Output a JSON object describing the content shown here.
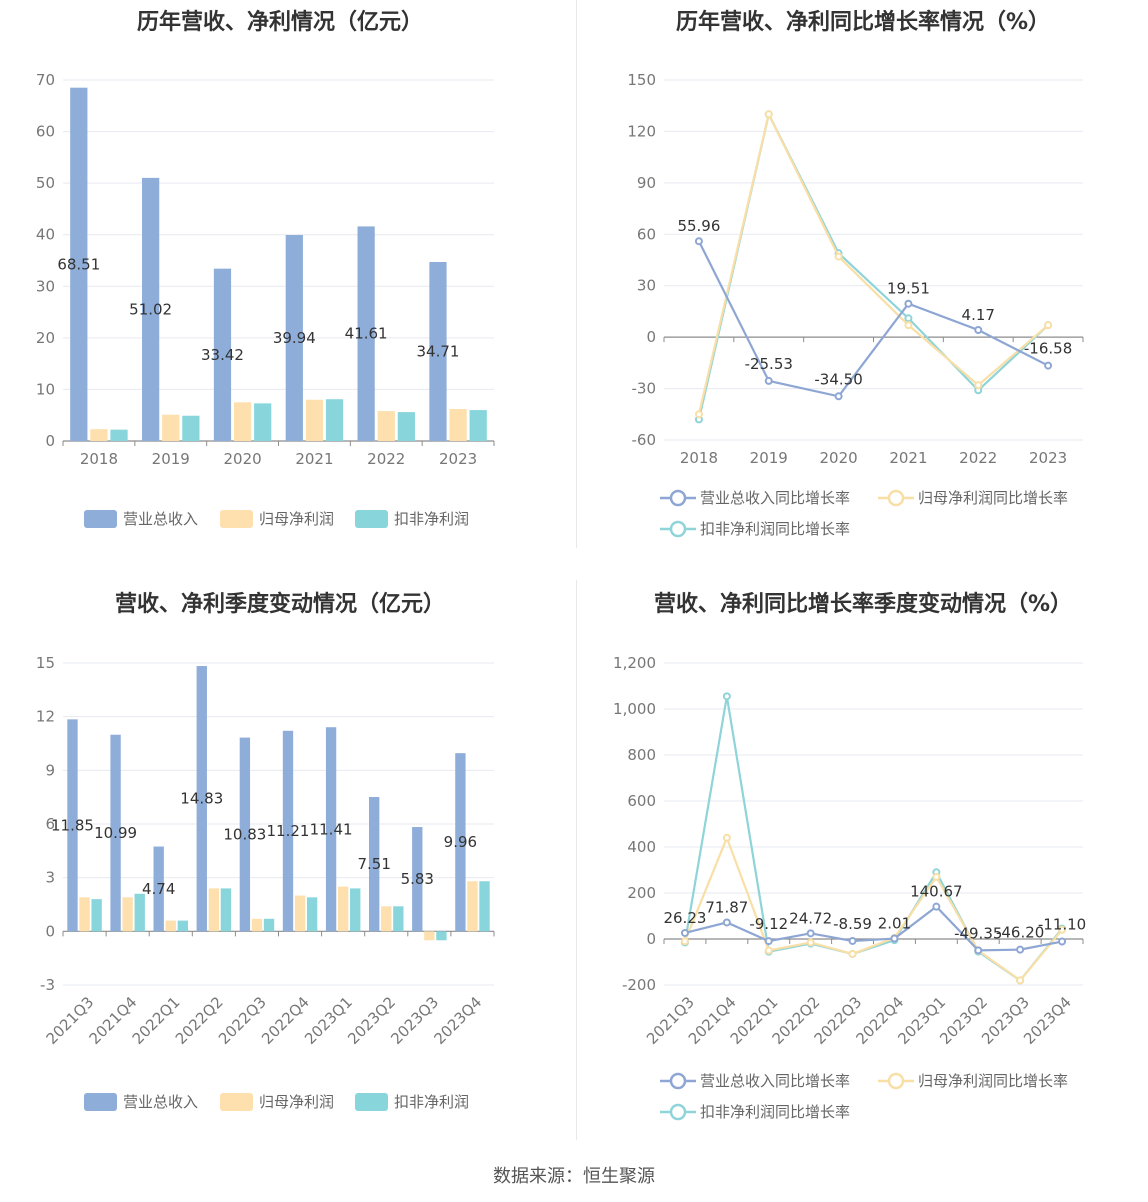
{
  "colors": {
    "revenue": "#8eadd9",
    "net_profit": "#fde0ae",
    "deducted_profit": "#88d6dc",
    "revenue_growth": "#8ea6d4",
    "net_profit_growth": "#f9dfa6",
    "deducted_growth": "#8fd4d8"
  },
  "legend_labels": {
    "revenue": "营业总收入",
    "net_profit": "归母净利润",
    "deducted_profit": "扣非净利润",
    "revenue_growth": "营业总收入同比增长率",
    "net_profit_growth": "归母净利润同比增长率",
    "deducted_growth": "扣非净利润同比增长率"
  },
  "footer": {
    "source": "数据来源：恒生聚源"
  },
  "chart_data": [
    {
      "id": "annual-amount",
      "type": "bar",
      "title": "历年营收、净利情况（亿元）",
      "categories": [
        "2018",
        "2019",
        "2020",
        "2021",
        "2022",
        "2023"
      ],
      "ylim": [
        0,
        70
      ],
      "yticks": [
        0,
        10,
        20,
        30,
        40,
        50,
        60,
        70
      ],
      "grid": true,
      "legend_position": "bottom",
      "series": [
        {
          "name": "营业总收入",
          "values": [
            68.51,
            51.02,
            33.42,
            39.94,
            41.61,
            34.71
          ],
          "labels": [
            "68.51",
            "51.02",
            "33.42",
            "39.94",
            "41.61",
            "34.71"
          ]
        },
        {
          "name": "归母净利润",
          "values": [
            2.3,
            5.1,
            7.5,
            8.0,
            5.8,
            6.2
          ]
        },
        {
          "name": "扣非净利润",
          "values": [
            2.2,
            4.9,
            7.3,
            8.1,
            5.6,
            6.0
          ]
        }
      ]
    },
    {
      "id": "annual-growth",
      "type": "line",
      "title": "历年营收、净利同比增长率情况（%）",
      "categories": [
        "2018",
        "2019",
        "2020",
        "2021",
        "2022",
        "2023"
      ],
      "ylim": [
        -60,
        150
      ],
      "yticks": [
        -60,
        -30,
        0,
        30,
        60,
        90,
        120,
        150
      ],
      "grid": true,
      "legend_position": "bottom",
      "series": [
        {
          "name": "营业总收入同比增长率",
          "values": [
            55.96,
            -25.53,
            -34.5,
            19.51,
            4.17,
            -16.58
          ],
          "labels": [
            "55.96",
            "-25.53",
            "-34.50",
            "19.51",
            "4.17",
            "-16.58"
          ]
        },
        {
          "name": "归母净利润同比增长率",
          "values": [
            -45,
            130,
            47,
            7,
            -28,
            7
          ]
        },
        {
          "name": "扣非净利润同比增长率",
          "values": [
            -48,
            130,
            49,
            11,
            -31,
            7
          ]
        }
      ]
    },
    {
      "id": "quarterly-amount",
      "type": "bar",
      "title": "营收、净利季度变动情况（亿元）",
      "categories": [
        "2021Q3",
        "2021Q4",
        "2022Q1",
        "2022Q2",
        "2022Q3",
        "2022Q4",
        "2023Q1",
        "2023Q2",
        "2023Q3",
        "2023Q4"
      ],
      "ylim": [
        -3,
        15
      ],
      "yticks": [
        -3,
        0,
        3,
        6,
        9,
        12,
        15
      ],
      "grid": true,
      "legend_position": "bottom",
      "series": [
        {
          "name": "营业总收入",
          "values": [
            11.85,
            10.99,
            4.74,
            14.83,
            10.83,
            11.21,
            11.41,
            7.51,
            5.83,
            9.96
          ],
          "labels": [
            "11.85",
            "10.99",
            "4.74",
            "14.83",
            "10.83",
            "11.21",
            "11.41",
            "7.51",
            "5.83",
            "9.96"
          ]
        },
        {
          "name": "归母净利润",
          "values": [
            1.9,
            1.9,
            0.6,
            2.4,
            0.7,
            2.0,
            2.5,
            1.4,
            -0.5,
            2.8
          ]
        },
        {
          "name": "扣非净利润",
          "values": [
            1.8,
            2.1,
            0.6,
            2.4,
            0.7,
            1.9,
            2.4,
            1.4,
            -0.5,
            2.8
          ]
        }
      ]
    },
    {
      "id": "quarterly-growth",
      "type": "line",
      "title": "营收、净利同比增长率季度变动情况（%）",
      "categories": [
        "2021Q3",
        "2021Q4",
        "2022Q1",
        "2022Q2",
        "2022Q3",
        "2022Q4",
        "2023Q1",
        "2023Q2",
        "2023Q3",
        "2023Q4"
      ],
      "ylim": [
        -200,
        1200
      ],
      "yticks": [
        -200,
        0,
        200,
        400,
        600,
        800,
        1000,
        1200
      ],
      "ytick_labels": [
        "-200",
        "0",
        "200",
        "400",
        "600",
        "800",
        "1,000",
        "1,200"
      ],
      "grid": true,
      "legend_position": "bottom",
      "series": [
        {
          "name": "营业总收入同比增长率",
          "values": [
            26.23,
            71.87,
            -9.12,
            24.72,
            -8.59,
            2.01,
            140.67,
            -49.35,
            -46.2,
            -11.1
          ],
          "labels": [
            "26.23",
            "71.87",
            "-9.12",
            "24.72",
            "-8.59",
            "2.01",
            "140.67",
            "-49.35",
            "-46.20",
            "-11.10"
          ]
        },
        {
          "name": "归母净利润同比增长率",
          "values": [
            -10,
            440,
            -50,
            -15,
            -65,
            5,
            270,
            -50,
            -180,
            40
          ]
        },
        {
          "name": "扣非净利润同比增长率",
          "values": [
            -15,
            1055,
            -55,
            -20,
            -65,
            -5,
            290,
            -55,
            -180,
            45
          ]
        }
      ]
    }
  ]
}
